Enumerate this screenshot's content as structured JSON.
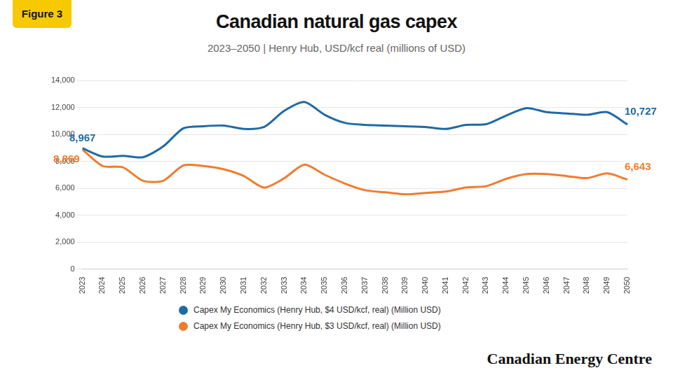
{
  "chart_data": {
    "type": "line",
    "figure_label": "Figure 3",
    "title": "Canadian natural gas capex",
    "subtitle": "2023–2050 | Henry Hub, USD/kcf real (millions of USD)",
    "footer": "Canadian Energy Centre",
    "categories": [
      "2023",
      "2024",
      "2025",
      "2026",
      "2027",
      "2028",
      "2029",
      "2030",
      "2031",
      "2032",
      "2033",
      "2034",
      "2035",
      "2036",
      "2037",
      "2038",
      "2039",
      "2040",
      "2041",
      "2042",
      "2043",
      "2044",
      "2045",
      "2046",
      "2047",
      "2048",
      "2049",
      "2050"
    ],
    "series": [
      {
        "name": "Capex My Economics (Henry Hub, $4 USD/kcf, real) (Million USD)",
        "color": "#1f6aa5",
        "values": [
          8967,
          8350,
          8400,
          8300,
          9100,
          10450,
          10600,
          10650,
          10400,
          10550,
          11750,
          12400,
          11450,
          10850,
          10700,
          10650,
          10600,
          10550,
          10400,
          10700,
          10750,
          11400,
          11950,
          11650,
          11550,
          11450,
          11650,
          10727
        ],
        "value_labels": [
          "8,967",
          null,
          null,
          null,
          null,
          null,
          null,
          null,
          null,
          null,
          null,
          null,
          null,
          null,
          null,
          null,
          null,
          null,
          null,
          null,
          null,
          null,
          null,
          null,
          null,
          null,
          null,
          "10,727"
        ]
      },
      {
        "name": "Capex My Economics (Henry Hub, $3 USD/kcf, real) (Million USD)",
        "color": "#ef7d2f",
        "values": [
          8869,
          7650,
          7550,
          6550,
          6550,
          7700,
          7650,
          7400,
          6900,
          6050,
          6750,
          7750,
          7000,
          6350,
          5850,
          5700,
          5550,
          5650,
          5750,
          6050,
          6150,
          6700,
          7050,
          7050,
          6900,
          6750,
          7100,
          6643
        ],
        "value_labels": [
          "8,869",
          null,
          null,
          null,
          null,
          null,
          null,
          null,
          null,
          null,
          null,
          null,
          null,
          null,
          null,
          null,
          null,
          null,
          null,
          null,
          null,
          null,
          null,
          null,
          null,
          null,
          null,
          "6,643"
        ]
      }
    ],
    "ylim": [
      0,
      14000
    ],
    "yticks": [
      0,
      {
        "value": 2000,
        "label": "2,000"
      },
      {
        "value": 4000,
        "label": "4,000"
      },
      {
        "value": 6000,
        "label": "6,000"
      },
      {
        "value": 8000,
        "label": "8,000"
      },
      {
        "value": 10000,
        "label": "10,000"
      },
      {
        "value": 12000,
        "label": "12,000"
      },
      {
        "value": 14000,
        "label": "14,000"
      }
    ],
    "grid": true,
    "legend": "bottom",
    "data_labels": true
  }
}
